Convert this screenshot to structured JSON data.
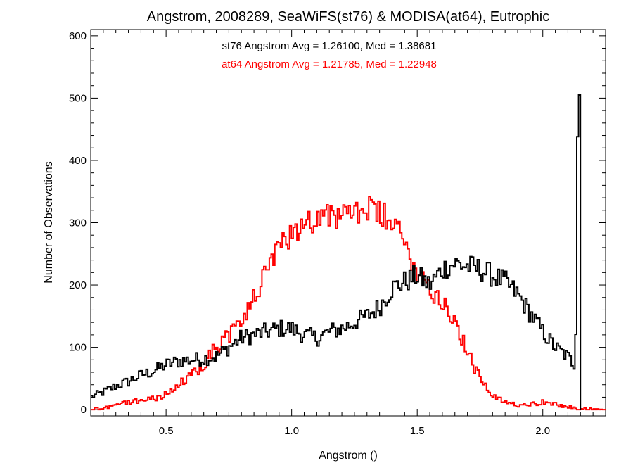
{
  "chart_data": {
    "type": "line",
    "title": "Angstrom, 2008289, SeaWiFS(st76) & MODISA(at64), Eutrophic",
    "xlabel": "Angstrom ()",
    "ylabel": "Number of Observations",
    "xlim": [
      0.2,
      2.25
    ],
    "ylim": [
      -10,
      610
    ],
    "x_ticks": [
      0.5,
      1.0,
      1.5,
      2.0
    ],
    "x_tick_labels": [
      "0.5",
      "1.0",
      "1.5",
      "2.0"
    ],
    "y_ticks": [
      0,
      100,
      200,
      300,
      400,
      500,
      600
    ],
    "y_tick_labels": [
      "0",
      "100",
      "200",
      "300",
      "400",
      "500",
      "600"
    ],
    "grid": false,
    "legend": "none",
    "annotations": [
      {
        "text": "st76 Angstrom Avg = 1.26100, Med = 1.38681",
        "color": "#000000"
      },
      {
        "text": "at64 Angstrom Avg = 1.21785, Med = 1.22948",
        "color": "#ff0000"
      }
    ],
    "series": [
      {
        "color": "#000000",
        "x": [
          0.2,
          0.25,
          0.3,
          0.35,
          0.4,
          0.45,
          0.5,
          0.55,
          0.6,
          0.65,
          0.7,
          0.75,
          0.8,
          0.85,
          0.9,
          0.95,
          1.0,
          1.05,
          1.1,
          1.15,
          1.2,
          1.25,
          1.3,
          1.35,
          1.4,
          1.45,
          1.5,
          1.55,
          1.6,
          1.65,
          1.7,
          1.75,
          1.8,
          1.85,
          1.9,
          1.95,
          2.0,
          2.05,
          2.1,
          2.13,
          2.14,
          2.15,
          2.16
        ],
        "values": [
          20,
          28,
          38,
          45,
          55,
          62,
          72,
          78,
          80,
          82,
          85,
          100,
          115,
          120,
          125,
          130,
          130,
          120,
          115,
          125,
          130,
          140,
          150,
          165,
          195,
          205,
          215,
          200,
          225,
          235,
          230,
          225,
          215,
          205,
          185,
          155,
          125,
          100,
          85,
          70,
          505,
          0,
          0
        ]
      },
      {
        "color": "#ff0000",
        "x": [
          0.2,
          0.25,
          0.3,
          0.35,
          0.4,
          0.45,
          0.5,
          0.55,
          0.6,
          0.65,
          0.7,
          0.75,
          0.8,
          0.85,
          0.9,
          0.95,
          1.0,
          1.05,
          1.1,
          1.15,
          1.2,
          1.25,
          1.3,
          1.35,
          1.4,
          1.45,
          1.5,
          1.55,
          1.6,
          1.65,
          1.7,
          1.75,
          1.8,
          1.85,
          1.9,
          1.95,
          2.0,
          2.05,
          2.1,
          2.15,
          2.25
        ],
        "values": [
          0,
          3,
          8,
          12,
          15,
          18,
          25,
          38,
          55,
          75,
          100,
          120,
          140,
          180,
          220,
          255,
          285,
          300,
          310,
          315,
          305,
          320,
          320,
          315,
          300,
          265,
          225,
          195,
          175,
          145,
          90,
          50,
          20,
          12,
          8,
          10,
          12,
          8,
          5,
          0,
          0
        ]
      }
    ]
  }
}
